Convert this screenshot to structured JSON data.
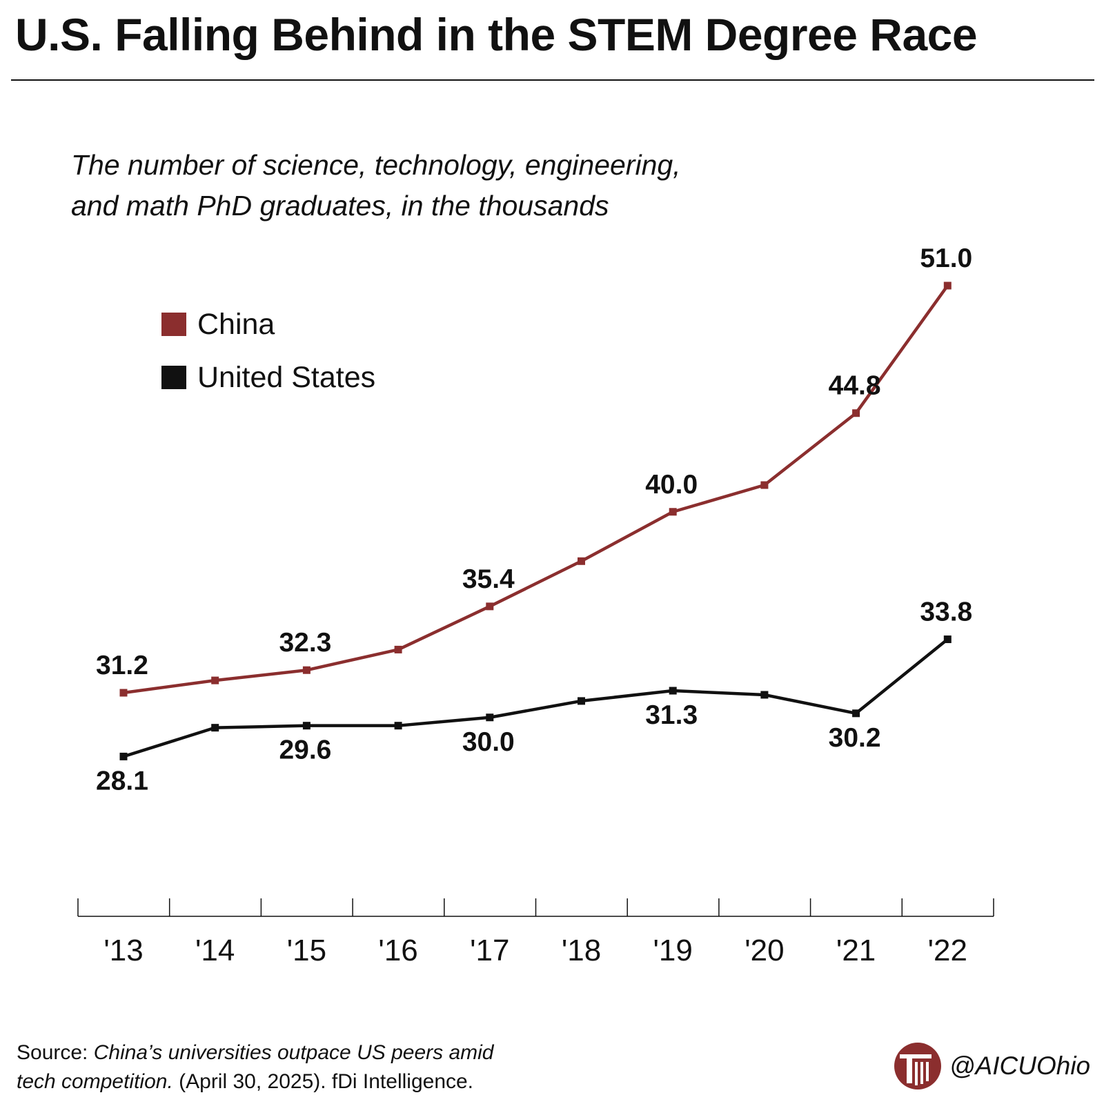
{
  "title": "U.S. Falling Behind in the STEM Degree Race",
  "subtitle": {
    "line1": "The number of science, technology, engineering,",
    "line2": "and math PhD graduates, in the thousands"
  },
  "colors": {
    "china": "#8b2e2e",
    "us": "#111111",
    "brand": "#8b2e2e"
  },
  "source": {
    "prefix": "Source: ",
    "title_line1": "China’s universities outpace US peers amid",
    "title_line2": "tech competition.",
    "rest": " (April 30, 2025). fDi Intelligence."
  },
  "branding": {
    "logo_icon": "aicu-column-logo-icon",
    "handle": "@AICUOhio"
  },
  "chart_data": {
    "type": "line",
    "categories": [
      "'13",
      "'14",
      "'15",
      "'16",
      "'17",
      "'18",
      "'19",
      "'20",
      "'21",
      "'22"
    ],
    "legend_position": "top-left",
    "grid": false,
    "series": [
      {
        "name": "China",
        "color": "#8b2e2e",
        "values": [
          31.2,
          31.8,
          32.3,
          33.3,
          35.4,
          37.6,
          40.0,
          41.3,
          44.8,
          51.0
        ],
        "labels": [
          "31.2",
          null,
          "32.3",
          null,
          "35.4",
          null,
          "40.0",
          null,
          "44.8",
          "51.0"
        ],
        "label_position": [
          "above",
          null,
          "above",
          null,
          "above",
          null,
          "above",
          null,
          "above",
          "above"
        ]
      },
      {
        "name": "United States",
        "color": "#111111",
        "values": [
          28.1,
          29.5,
          29.6,
          29.6,
          30.0,
          30.8,
          31.3,
          31.1,
          30.2,
          33.8
        ],
        "labels": [
          "28.1",
          null,
          "29.6",
          null,
          "30.0",
          null,
          "31.3",
          null,
          "30.2",
          "33.8"
        ],
        "label_position": [
          "below",
          null,
          "below",
          null,
          "below",
          null,
          "below",
          null,
          "below",
          "above"
        ]
      }
    ]
  }
}
